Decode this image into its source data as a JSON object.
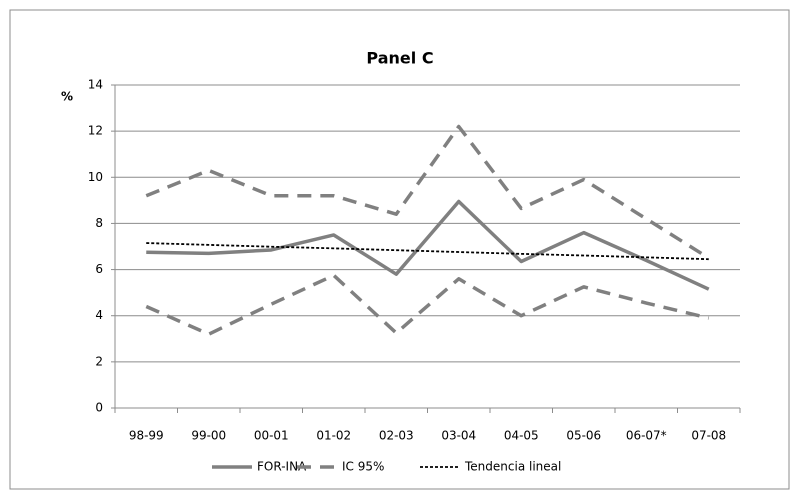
{
  "chart_data": {
    "type": "line",
    "title": "Panel C",
    "y_label": "%",
    "categories": [
      "98-99",
      "99-00",
      "00-01",
      "01-02",
      "02-03",
      "03-04",
      "04-05",
      "05-06",
      "06-07*",
      "07-08"
    ],
    "series": [
      {
        "name": "FOR-INA",
        "color": "#808080",
        "style": "solid",
        "values": [
          6.75,
          6.7,
          6.85,
          7.5,
          5.8,
          8.95,
          6.35,
          7.6,
          6.4,
          5.15
        ]
      },
      {
        "name": "IC 95%",
        "color": "#808080",
        "style": "dashed",
        "values": [
          9.2,
          10.3,
          9.2,
          9.2,
          8.4,
          12.2,
          8.65,
          9.9,
          8.2,
          6.5
        ],
        "lower": [
          4.4,
          3.2,
          4.5,
          5.75,
          3.25,
          5.6,
          4.0,
          5.25,
          4.55,
          3.9
        ]
      },
      {
        "name": "Tendencia lineal",
        "color": "#000000",
        "style": "dotted",
        "values": [
          7.15,
          7.07,
          6.99,
          6.92,
          6.84,
          6.76,
          6.68,
          6.61,
          6.53,
          6.45
        ]
      }
    ],
    "ylim": [
      0,
      14
    ],
    "yticks": [
      0,
      2,
      4,
      6,
      8,
      10,
      12,
      14
    ],
    "grid": true,
    "legend": "bottom"
  }
}
